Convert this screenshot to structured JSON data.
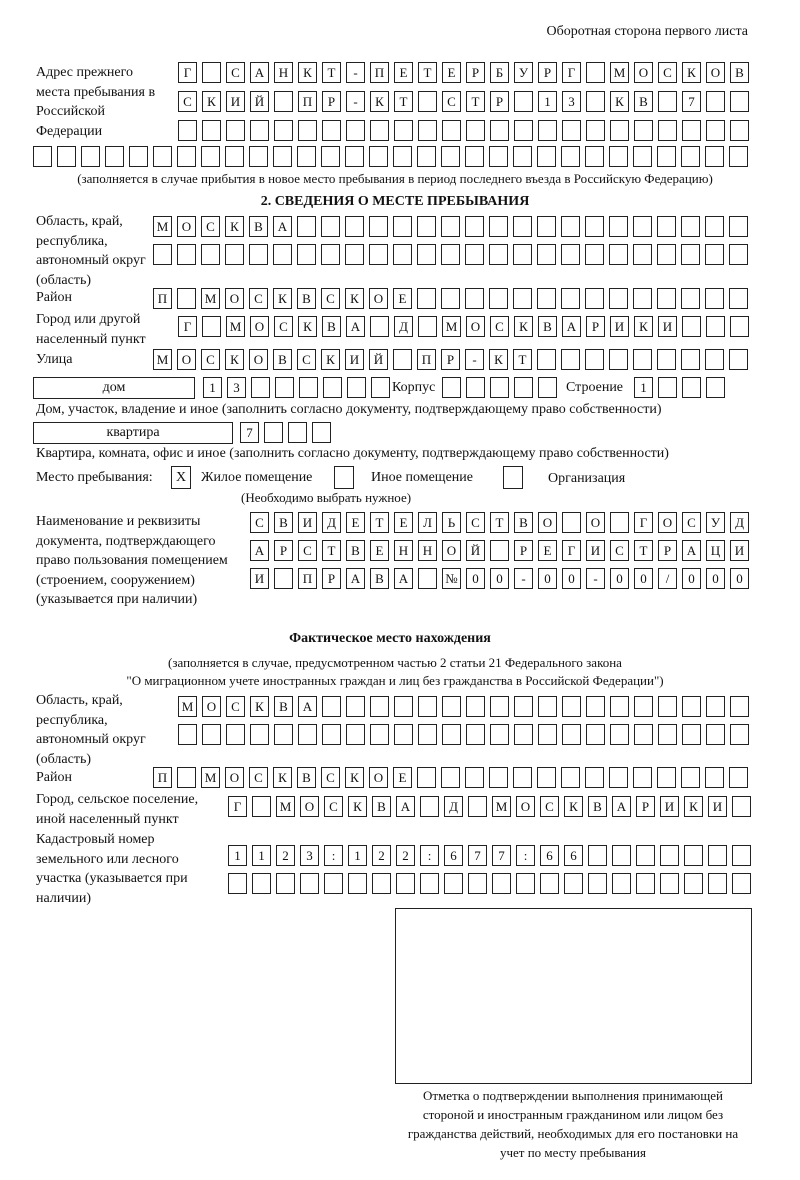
{
  "header": {
    "title": "Оборотная сторона первого листа"
  },
  "previous_address": {
    "label": "Адрес прежнего места пребывания в Российской Федерации",
    "rows": [
      [
        "Г",
        "",
        "С",
        "А",
        "Н",
        "К",
        "Т",
        "-",
        "П",
        "Е",
        "Т",
        "Е",
        "Р",
        "Б",
        "У",
        "Р",
        "Г",
        "",
        "М",
        "О",
        "С",
        "К",
        "О",
        "В"
      ],
      [
        "С",
        "К",
        "И",
        "Й",
        "",
        "П",
        "Р",
        "-",
        "К",
        "Т",
        "",
        "С",
        "Т",
        "Р",
        "",
        "1",
        "3",
        "",
        "К",
        "В",
        "",
        "7",
        "",
        ""
      ],
      [
        "",
        "",
        "",
        "",
        "",
        "",
        "",
        "",
        "",
        "",
        "",
        "",
        "",
        "",
        "",
        "",
        "",
        "",
        "",
        "",
        "",
        "",
        "",
        ""
      ],
      [
        "",
        "",
        "",
        "",
        "",
        "",
        "",
        "",
        "",
        "",
        "",
        "",
        "",
        "",
        "",
        "",
        "",
        "",
        "",
        "",
        "",
        "",
        "",
        "",
        "",
        "",
        "",
        "",
        "",
        ""
      ]
    ],
    "note": "(заполняется в случае прибытия в новое место пребывания в период последнего въезда в Российскую Федерацию)"
  },
  "section2": {
    "heading": "2. СВЕДЕНИЯ О МЕСТЕ ПРЕБЫВАНИЯ",
    "region_label": "Область, край, республика, автономный округ (область)",
    "region_rows": [
      [
        "М",
        "О",
        "С",
        "К",
        "В",
        "А",
        "",
        "",
        "",
        "",
        "",
        "",
        "",
        "",
        "",
        "",
        "",
        "",
        "",
        "",
        "",
        "",
        "",
        "",
        ""
      ],
      [
        "",
        "",
        "",
        "",
        "",
        "",
        "",
        "",
        "",
        "",
        "",
        "",
        "",
        "",
        "",
        "",
        "",
        "",
        "",
        "",
        "",
        "",
        "",
        "",
        ""
      ]
    ],
    "district_label": "Район",
    "district_row": [
      "П",
      "",
      "М",
      "О",
      "С",
      "К",
      "В",
      "С",
      "К",
      "О",
      "Е",
      "",
      "",
      "",
      "",
      "",
      "",
      "",
      "",
      "",
      "",
      "",
      "",
      "",
      ""
    ],
    "city_label": "Город или другой населенный пункт",
    "city_row": [
      "Г",
      "",
      "М",
      "О",
      "С",
      "К",
      "В",
      "А",
      "",
      "Д",
      "",
      "М",
      "О",
      "С",
      "К",
      "В",
      "А",
      "Р",
      "И",
      "К",
      "И",
      "",
      "",
      ""
    ],
    "street_label": "Улица",
    "street_row": [
      "М",
      "О",
      "С",
      "К",
      "О",
      "В",
      "С",
      "К",
      "И",
      "Й",
      "",
      "П",
      "Р",
      "-",
      "К",
      "Т",
      "",
      "",
      "",
      "",
      "",
      "",
      "",
      "",
      ""
    ],
    "house_type": "дом",
    "house_row": [
      "1",
      "3",
      "",
      "",
      "",
      "",
      "",
      ""
    ],
    "korpus_label": "Корпус",
    "korpus_row": [
      "",
      "",
      "",
      "",
      ""
    ],
    "building_label": "Строение",
    "building_row": [
      "1",
      "",
      "",
      ""
    ],
    "house_note": "Дом, участок, владение и иное (заполнить согласно документу, подтверждающему право собственности)",
    "apt_type": "квартира",
    "apt_row": [
      "7",
      "",
      "",
      ""
    ],
    "apt_note": "Квартира, комната, офис и иное (заполнить согласно документу, подтверждающему право собственности)",
    "stay_label": "Место пребывания:",
    "options": [
      {
        "label": "Жилое помещение",
        "mark": "X"
      },
      {
        "label": "Иное помещение",
        "mark": ""
      },
      {
        "label": "Организация",
        "mark": ""
      }
    ],
    "options_note": "(Необходимо выбрать нужное)",
    "doc_label": "Наименование и реквизиты документа, подтверждающего право пользования помещением (строением, сооружением) (указывается при наличии)",
    "doc_rows": [
      [
        "С",
        "В",
        "И",
        "Д",
        "Е",
        "Т",
        "Е",
        "Л",
        "Ь",
        "С",
        "Т",
        "В",
        "О",
        "",
        "О",
        "",
        "Г",
        "О",
        "С",
        "У",
        "Д"
      ],
      [
        "А",
        "Р",
        "С",
        "Т",
        "В",
        "Е",
        "Н",
        "Н",
        "О",
        "Й",
        "",
        "Р",
        "Е",
        "Г",
        "И",
        "С",
        "Т",
        "Р",
        "А",
        "Ц",
        "И"
      ],
      [
        "И",
        "",
        "П",
        "Р",
        "А",
        "В",
        "А",
        "",
        "№",
        "0",
        "0",
        "-",
        "0",
        "0",
        "-",
        "0",
        "0",
        "/",
        "0",
        "0",
        "0"
      ]
    ]
  },
  "actual": {
    "heading": "Фактическое место нахождения",
    "note1": "(заполняется в случае, предусмотренном частью 2 статьи 21 Федерального закона",
    "note2": "\"О миграционном учете иностранных граждан и лиц без гражданства в Российской Федерации\")",
    "region_label": "Область, край, республика, автономный округ (область)",
    "region_rows": [
      [
        "М",
        "О",
        "С",
        "К",
        "В",
        "А",
        "",
        "",
        "",
        "",
        "",
        "",
        "",
        "",
        "",
        "",
        "",
        "",
        "",
        "",
        "",
        "",
        "",
        ""
      ],
      [
        "",
        "",
        "",
        "",
        "",
        "",
        "",
        "",
        "",
        "",
        "",
        "",
        "",
        "",
        "",
        "",
        "",
        "",
        "",
        "",
        "",
        "",
        "",
        ""
      ]
    ],
    "district_label": "Район",
    "district_row": [
      "П",
      "",
      "М",
      "О",
      "С",
      "К",
      "В",
      "С",
      "К",
      "О",
      "Е",
      "",
      "",
      "",
      "",
      "",
      "",
      "",
      "",
      "",
      "",
      "",
      "",
      "",
      ""
    ],
    "city_label": "Город, сельское поселение, иной населенный пункт",
    "city_row": [
      "Г",
      "",
      "М",
      "О",
      "С",
      "К",
      "В",
      "А",
      "",
      "Д",
      "",
      "М",
      "О",
      "С",
      "К",
      "В",
      "А",
      "Р",
      "И",
      "К",
      "И",
      ""
    ],
    "cadastral_label": "Кадастровый номер земельного или лесного участка (указывается при наличии)",
    "cadastral_rows": [
      [
        "1",
        "1",
        "2",
        "3",
        ":",
        "1",
        "2",
        "2",
        ":",
        "6",
        "7",
        "7",
        ":",
        "6",
        "6",
        "",
        "",
        "",
        "",
        "",
        "",
        ""
      ],
      [
        "",
        "",
        "",
        "",
        "",
        "",
        "",
        "",
        "",
        "",
        "",
        "",
        "",
        "",
        "",
        "",
        "",
        "",
        "",
        "",
        "",
        ""
      ]
    ]
  },
  "stamp": {
    "caption": "Отметка о подтверждении выполнения принимающей стороной и иностранным гражданином или лицом без гражданства действий, необходимых для его постановки на учет по месту пребывания"
  }
}
